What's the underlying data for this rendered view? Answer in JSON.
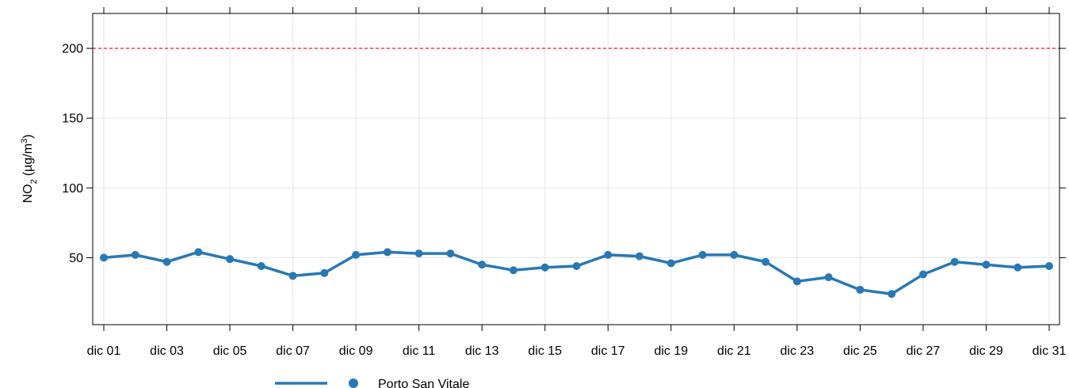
{
  "chart_data": {
    "type": "line",
    "y_label_parts": [
      "NO",
      "2",
      "(µg/m",
      "3",
      ")"
    ],
    "categories": [
      "dic 01",
      null,
      "dic 03",
      null,
      "dic 05",
      null,
      "dic 07",
      null,
      "dic 09",
      null,
      "dic 11",
      null,
      "dic 13",
      null,
      "dic 15",
      null,
      "dic 17",
      null,
      "dic 19",
      null,
      "dic 21",
      null,
      "dic 23",
      null,
      "dic 25",
      null,
      "dic 27",
      null,
      "dic 29",
      null,
      "dic 31"
    ],
    "series": [
      {
        "name": "Porto San Vitale",
        "color": "#2878b5",
        "values": [
          50,
          52,
          47,
          54,
          49,
          44,
          37,
          39,
          52,
          54,
          53,
          53,
          45,
          41,
          43,
          44,
          52,
          51,
          46,
          52,
          52,
          47,
          33,
          36,
          27,
          24,
          38,
          47,
          45,
          43,
          44
        ]
      }
    ],
    "ylim": [
      2,
      225
    ],
    "yticks": [
      50,
      100,
      150,
      200
    ],
    "grid": true,
    "reference_line": {
      "value": 200,
      "color": "#ff0000"
    }
  }
}
